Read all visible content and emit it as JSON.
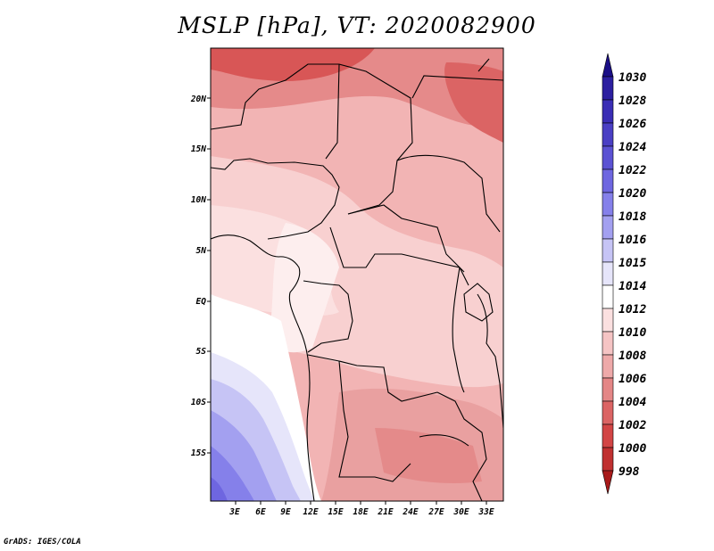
{
  "title": "MSLP [hPa], VT: 2020082900",
  "footer": "GrADS: IGES/COLA",
  "lat_labels": [
    "20N",
    "15N",
    "10N",
    "5N",
    "EQ",
    "5S",
    "10S",
    "15S"
  ],
  "lon_labels": [
    "3E",
    "6E",
    "9E",
    "12E",
    "15E",
    "18E",
    "21E",
    "24E",
    "27E",
    "30E",
    "33E"
  ],
  "colorbar": {
    "levels": [
      "1030",
      "1028",
      "1026",
      "1024",
      "1022",
      "1020",
      "1018",
      "1016",
      "1015",
      "1014",
      "1012",
      "1010",
      "1008",
      "1006",
      "1004",
      "1002",
      "1000",
      "998"
    ],
    "colors": [
      "#1b0f87",
      "#2c1fa0",
      "#3a2db5",
      "#4a3fc4",
      "#5b52d3",
      "#6e66e0",
      "#8580ea",
      "#a3a0f0",
      "#c6c4f5",
      "#e6e5fa",
      "#ffffff",
      "#fbe0e0",
      "#f5c4c4",
      "#eea9a9",
      "#e48686",
      "#db6464",
      "#d24545",
      "#c03030",
      "#a81a1a"
    ]
  },
  "colors": {
    "land_outline": "#000000",
    "background": "#ffffff"
  }
}
